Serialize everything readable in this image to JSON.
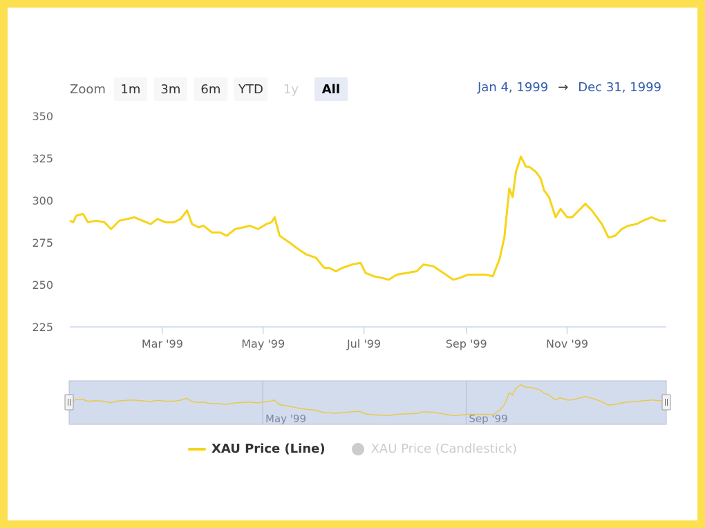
{
  "zoom": {
    "label": "Zoom",
    "buttons": [
      {
        "label": "1m",
        "state": "normal"
      },
      {
        "label": "3m",
        "state": "normal"
      },
      {
        "label": "6m",
        "state": "normal"
      },
      {
        "label": "YTD",
        "state": "normal"
      },
      {
        "label": "1y",
        "state": "disabled"
      },
      {
        "label": "All",
        "state": "selected"
      }
    ]
  },
  "range": {
    "from": "Jan 4, 1999",
    "arrow": "→",
    "to": "Dec 31, 1999"
  },
  "colors": {
    "border": "#fde050",
    "series": "#f7d419",
    "navigator_fill": "#d3dced",
    "axis": "#ccd6eb",
    "range_text": "#335cad"
  },
  "chart_data": {
    "type": "line",
    "title": "",
    "xlabel": "",
    "ylabel": "",
    "ylim": [
      225,
      350
    ],
    "xlim": [
      "1999-01-04",
      "1999-12-31"
    ],
    "yticks": [
      "350",
      "325",
      "300",
      "275",
      "250",
      "225"
    ],
    "xticks": [
      {
        "label": "Mar '99",
        "date": "1999-03-01"
      },
      {
        "label": "May '99",
        "date": "1999-05-01"
      },
      {
        "label": "Jul '99",
        "date": "1999-07-01"
      },
      {
        "label": "Sep '99",
        "date": "1999-09-01"
      },
      {
        "label": "Nov '99",
        "date": "1999-11-01"
      }
    ],
    "navigator_labels": [
      {
        "label": "May '99",
        "date": "1999-05-01"
      },
      {
        "label": "Sep '99",
        "date": "1999-09-01"
      }
    ],
    "grid": false,
    "legend_position": "bottom-center",
    "series": [
      {
        "name": "XAU Price (Line)",
        "visible": true,
        "x": [
          "1999-01-04",
          "1999-01-06",
          "1999-01-08",
          "1999-01-12",
          "1999-01-15",
          "1999-01-20",
          "1999-01-25",
          "1999-01-29",
          "1999-02-03",
          "1999-02-08",
          "1999-02-12",
          "1999-02-17",
          "1999-02-22",
          "1999-02-26",
          "1999-03-03",
          "1999-03-08",
          "1999-03-12",
          "1999-03-16",
          "1999-03-19",
          "1999-03-23",
          "1999-03-26",
          "1999-03-31",
          "1999-04-05",
          "1999-04-09",
          "1999-04-14",
          "1999-04-19",
          "1999-04-23",
          "1999-04-28",
          "1999-05-03",
          "1999-05-06",
          "1999-05-08",
          "1999-05-11",
          "1999-05-17",
          "1999-05-21",
          "1999-05-27",
          "1999-06-02",
          "1999-06-07",
          "1999-06-10",
          "1999-06-14",
          "1999-06-18",
          "1999-06-24",
          "1999-06-29",
          "1999-07-02",
          "1999-07-07",
          "1999-07-12",
          "1999-07-16",
          "1999-07-21",
          "1999-07-27",
          "1999-08-02",
          "1999-08-06",
          "1999-08-12",
          "1999-08-18",
          "1999-08-24",
          "1999-08-28",
          "1999-09-02",
          "1999-09-07",
          "1999-09-13",
          "1999-09-17",
          "1999-09-21",
          "1999-09-24",
          "1999-09-27",
          "1999-09-29",
          "1999-10-01",
          "1999-10-04",
          "1999-10-07",
          "1999-10-09",
          "1999-10-13",
          "1999-10-16",
          "1999-10-18",
          "1999-10-21",
          "1999-10-25",
          "1999-10-28",
          "1999-11-01",
          "1999-11-04",
          "1999-11-09",
          "1999-11-12",
          "1999-11-16",
          "1999-11-22",
          "1999-11-26",
          "1999-11-30",
          "1999-12-04",
          "1999-12-08",
          "1999-12-13",
          "1999-12-17",
          "1999-12-22",
          "1999-12-27",
          "1999-12-31"
        ],
        "y": [
          288,
          287,
          291,
          292,
          287,
          288,
          287,
          283,
          288,
          289,
          290,
          288,
          286,
          289,
          287,
          287,
          289,
          294,
          286,
          284,
          285,
          281,
          281,
          279,
          283,
          284,
          285,
          283,
          286,
          287,
          290,
          279,
          275,
          272,
          268,
          266,
          260,
          260,
          258,
          260,
          262,
          263,
          257,
          255,
          254,
          253,
          256,
          257,
          258,
          262,
          261,
          257,
          253,
          254,
          256,
          256,
          256,
          255,
          265,
          278,
          307,
          302,
          317,
          326,
          320,
          320,
          317,
          313,
          306,
          302,
          290,
          295,
          290,
          290,
          295,
          298,
          294,
          286,
          278,
          279,
          283,
          285,
          286,
          288,
          290,
          288,
          288
        ]
      },
      {
        "name": "XAU Price (Candlestick)",
        "visible": false
      }
    ]
  }
}
